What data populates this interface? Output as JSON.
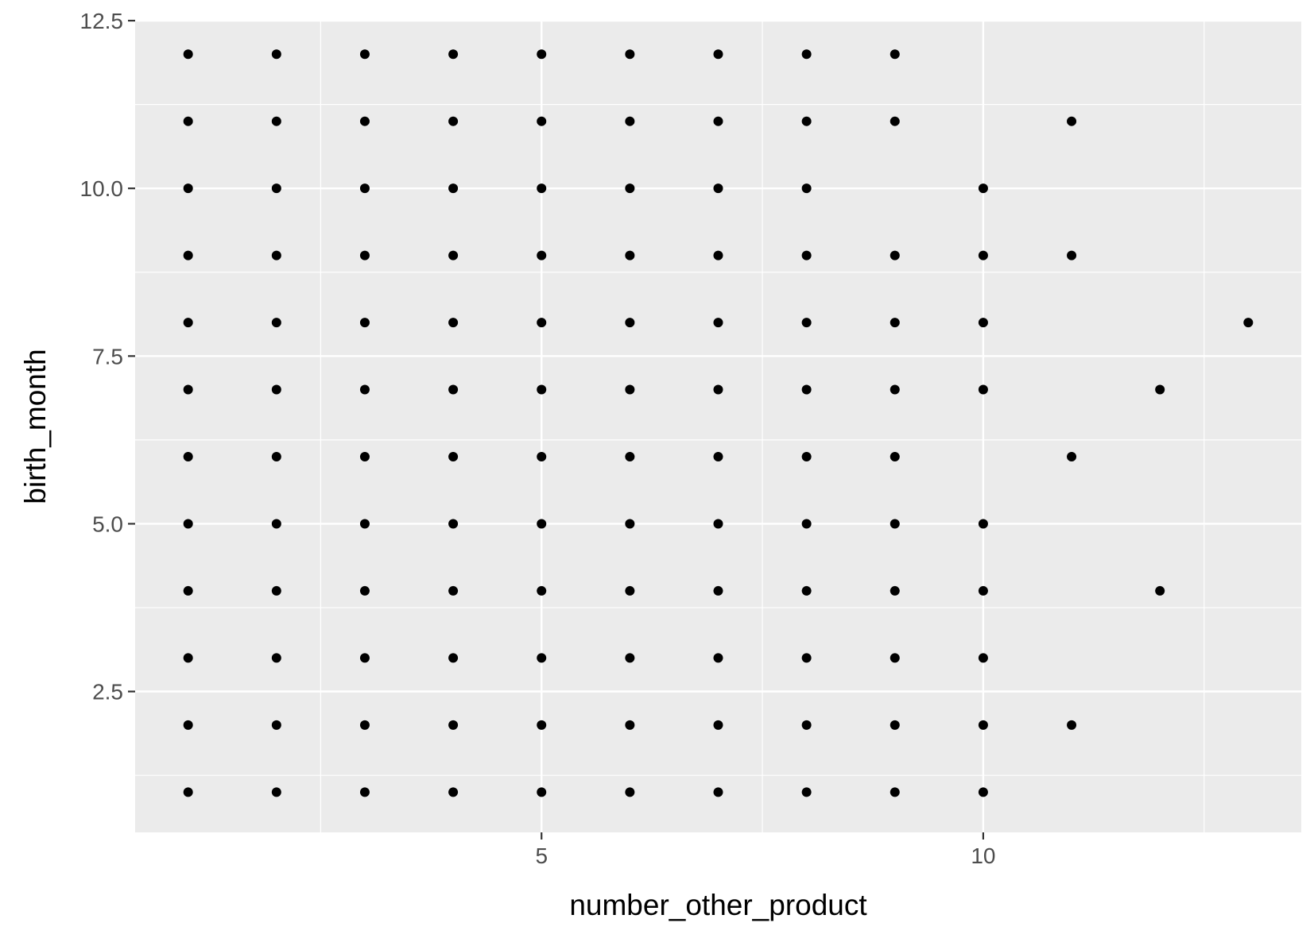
{
  "chart_data": {
    "type": "scatter",
    "title": "",
    "xlabel": "number_other_product",
    "ylabel": "birth_month",
    "xlim": [
      0.4,
      13.6
    ],
    "ylim": [
      0.4,
      12.5
    ],
    "x_ticks": [
      5,
      10
    ],
    "x_tick_labels": [
      "5",
      "10"
    ],
    "y_ticks": [
      2.5,
      5.0,
      7.5,
      10.0,
      12.5
    ],
    "y_tick_labels": [
      "2.5",
      "5.0",
      "7.5",
      "10.0",
      "12.5"
    ],
    "grid": true,
    "colors": {
      "panel": "#ebebeb",
      "grid": "#ffffff",
      "point": "#000000",
      "tick_text": "#4d4d4d",
      "tick": "#333333"
    },
    "points": [
      [
        1,
        1
      ],
      [
        1,
        2
      ],
      [
        1,
        3
      ],
      [
        1,
        4
      ],
      [
        1,
        5
      ],
      [
        1,
        6
      ],
      [
        1,
        7
      ],
      [
        1,
        8
      ],
      [
        1,
        9
      ],
      [
        1,
        10
      ],
      [
        1,
        11
      ],
      [
        1,
        12
      ],
      [
        2,
        1
      ],
      [
        2,
        2
      ],
      [
        2,
        3
      ],
      [
        2,
        4
      ],
      [
        2,
        5
      ],
      [
        2,
        6
      ],
      [
        2,
        7
      ],
      [
        2,
        8
      ],
      [
        2,
        9
      ],
      [
        2,
        10
      ],
      [
        2,
        11
      ],
      [
        2,
        12
      ],
      [
        3,
        1
      ],
      [
        3,
        2
      ],
      [
        3,
        3
      ],
      [
        3,
        4
      ],
      [
        3,
        5
      ],
      [
        3,
        6
      ],
      [
        3,
        7
      ],
      [
        3,
        8
      ],
      [
        3,
        9
      ],
      [
        3,
        10
      ],
      [
        3,
        11
      ],
      [
        3,
        12
      ],
      [
        4,
        1
      ],
      [
        4,
        2
      ],
      [
        4,
        3
      ],
      [
        4,
        4
      ],
      [
        4,
        5
      ],
      [
        4,
        6
      ],
      [
        4,
        7
      ],
      [
        4,
        8
      ],
      [
        4,
        9
      ],
      [
        4,
        10
      ],
      [
        4,
        11
      ],
      [
        4,
        12
      ],
      [
        5,
        1
      ],
      [
        5,
        2
      ],
      [
        5,
        3
      ],
      [
        5,
        4
      ],
      [
        5,
        5
      ],
      [
        5,
        6
      ],
      [
        5,
        7
      ],
      [
        5,
        8
      ],
      [
        5,
        9
      ],
      [
        5,
        10
      ],
      [
        5,
        11
      ],
      [
        5,
        12
      ],
      [
        6,
        1
      ],
      [
        6,
        2
      ],
      [
        6,
        3
      ],
      [
        6,
        4
      ],
      [
        6,
        5
      ],
      [
        6,
        6
      ],
      [
        6,
        7
      ],
      [
        6,
        8
      ],
      [
        6,
        9
      ],
      [
        6,
        10
      ],
      [
        6,
        11
      ],
      [
        6,
        12
      ],
      [
        7,
        1
      ],
      [
        7,
        2
      ],
      [
        7,
        3
      ],
      [
        7,
        4
      ],
      [
        7,
        5
      ],
      [
        7,
        6
      ],
      [
        7,
        7
      ],
      [
        7,
        8
      ],
      [
        7,
        9
      ],
      [
        7,
        10
      ],
      [
        7,
        11
      ],
      [
        7,
        12
      ],
      [
        8,
        1
      ],
      [
        8,
        2
      ],
      [
        8,
        3
      ],
      [
        8,
        4
      ],
      [
        8,
        5
      ],
      [
        8,
        6
      ],
      [
        8,
        7
      ],
      [
        8,
        8
      ],
      [
        8,
        9
      ],
      [
        8,
        10
      ],
      [
        8,
        11
      ],
      [
        8,
        12
      ],
      [
        9,
        1
      ],
      [
        9,
        2
      ],
      [
        9,
        3
      ],
      [
        9,
        4
      ],
      [
        9,
        5
      ],
      [
        9,
        6
      ],
      [
        9,
        7
      ],
      [
        9,
        8
      ],
      [
        9,
        9
      ],
      [
        9,
        11
      ],
      [
        9,
        12
      ],
      [
        10,
        1
      ],
      [
        10,
        2
      ],
      [
        10,
        3
      ],
      [
        10,
        4
      ],
      [
        10,
        5
      ],
      [
        10,
        7
      ],
      [
        10,
        8
      ],
      [
        10,
        9
      ],
      [
        10,
        10
      ],
      [
        11,
        2
      ],
      [
        11,
        6
      ],
      [
        11,
        9
      ],
      [
        11,
        11
      ],
      [
        12,
        4
      ],
      [
        12,
        7
      ],
      [
        13,
        8
      ]
    ]
  }
}
